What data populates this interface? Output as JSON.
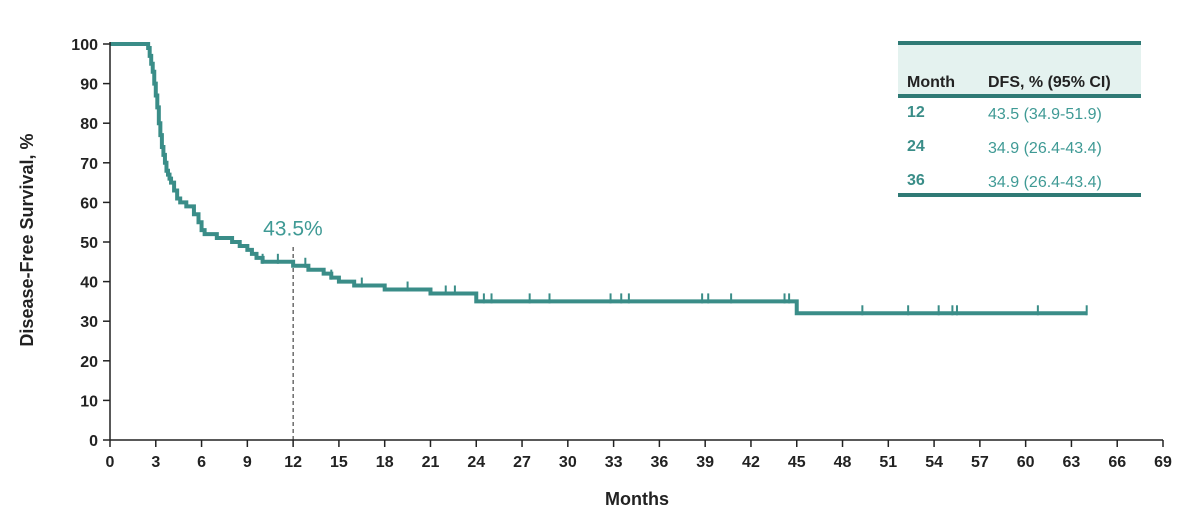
{
  "chart_data": {
    "type": "line",
    "ylabel": "Disease-Free Survival, %",
    "xlabel": "Months",
    "xlim": [
      0,
      69
    ],
    "ylim": [
      0,
      100
    ],
    "xticks": [
      "0",
      "3",
      "6",
      "9",
      "12",
      "15",
      "18",
      "21",
      "24",
      "27",
      "30",
      "33",
      "36",
      "39",
      "42",
      "45",
      "48",
      "51",
      "54",
      "57",
      "60",
      "63",
      "66",
      "69"
    ],
    "yticks": [
      "0",
      "10",
      "20",
      "30",
      "40",
      "50",
      "60",
      "70",
      "80",
      "90",
      "100"
    ],
    "grid": false,
    "line_color": "#3a8d88",
    "series": [
      {
        "x": [
          0,
          2.5,
          2.6,
          2.7,
          2.8,
          2.9,
          3.0,
          3.1,
          3.2,
          3.3,
          3.4,
          3.5,
          3.6,
          3.7,
          3.8,
          3.9,
          4.0,
          4.2,
          4.4,
          4.6,
          5.0,
          5.5,
          5.8,
          6.0,
          6.2,
          6.5,
          7.0,
          8.0,
          8.5,
          9.0,
          9.3,
          9.6,
          10.0,
          11.0,
          12.0,
          13.0,
          14.0,
          14.5,
          15.0,
          16.0,
          18.0,
          20.0,
          21.0,
          22.0,
          23.5,
          24.0,
          30.0,
          40.0,
          44.6,
          45.0,
          50.0,
          60.0,
          64.0
        ],
        "y": [
          100,
          99,
          97,
          95,
          93,
          90,
          87,
          84,
          80,
          77,
          74,
          72,
          70,
          68,
          67,
          66,
          65,
          63,
          61,
          60,
          59,
          57,
          55,
          53,
          52,
          52,
          51,
          50,
          49,
          48,
          47,
          46,
          45,
          45,
          44,
          43,
          42,
          41,
          40,
          39,
          38,
          38,
          37,
          37,
          37,
          35,
          35,
          35,
          35,
          32,
          32,
          32,
          32
        ]
      }
    ],
    "censor_x": [
      10.0,
      11.0,
      12.8,
      14.5,
      16.5,
      19.5,
      22.0,
      22.6,
      24.5,
      25.0,
      27.5,
      28.8,
      32.8,
      33.5,
      34.0,
      38.8,
      39.2,
      40.7,
      44.2,
      44.5,
      49.3,
      52.3,
      54.3,
      55.2,
      55.5,
      60.8,
      64.0
    ],
    "annotation": {
      "text": "43.5%",
      "x": 12,
      "y": 43.5
    }
  },
  "table": {
    "headers": [
      "Month",
      "DFS, % (95% CI)"
    ],
    "rows": [
      {
        "month": "12",
        "value": "43.5 (34.9-51.9)"
      },
      {
        "month": "24",
        "value": "34.9 (26.4-43.4)"
      },
      {
        "month": "36",
        "value": "34.9 (26.4-43.4)"
      }
    ]
  }
}
